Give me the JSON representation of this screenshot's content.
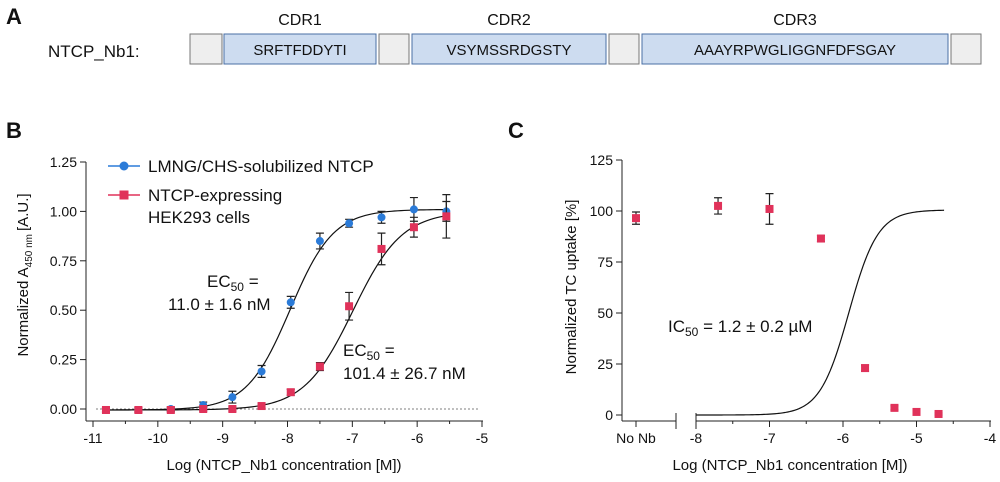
{
  "panel_a": {
    "letter": "A",
    "construct_label": "NTCP_Nb1:",
    "cdrs": [
      {
        "label": "CDR1",
        "sequence": "SRFTFDDYTI"
      },
      {
        "label": "CDR2",
        "sequence": "VSYMSSRDGSTY"
      },
      {
        "label": "CDR3",
        "sequence": "AAAYRPWGLIGGNFDFSGAY"
      }
    ]
  },
  "colors": {
    "blue": "#2b7bd8",
    "red": "#e0325a",
    "cdr_fill": "#cddcf0",
    "cdr_stroke": "#4a6fa5",
    "fw_fill": "#eeeeee",
    "fw_stroke": "#777777"
  },
  "chart_data": [
    {
      "panel": "B",
      "type": "scatter",
      "xlabel": "Log (NTCP_Nb1 concentration [M])",
      "ylabel_main": "Normalized A",
      "ylabel_sub": "450 nm",
      "ylabel_unit": "[A.U.]",
      "xlim": [
        -11,
        -5
      ],
      "ylim": [
        -0.05,
        1.25
      ],
      "xticks": [
        "-11",
        "-10",
        "-9",
        "-8",
        "-7",
        "-6",
        "-5"
      ],
      "yticks": [
        "0.00",
        "0.25",
        "0.50",
        "0.75",
        "1.00",
        "1.25"
      ],
      "xtick_values": [
        -11,
        -10,
        -9,
        -8,
        -7,
        -6,
        -5
      ],
      "ytick_values": [
        0,
        0.25,
        0.5,
        0.75,
        1.0,
        1.25
      ],
      "baseline_dotted": 0,
      "series": [
        {
          "name": "LMNG/CHS-solubilized NTCP",
          "color": "#2b7bd8",
          "marker": "circle",
          "x": [
            -10.8,
            -10.3,
            -9.8,
            -9.3,
            -8.85,
            -8.4,
            -7.95,
            -7.5,
            -7.05,
            -6.55,
            -6.05,
            -5.55
          ],
          "y": [
            -0.005,
            -0.005,
            0.0,
            0.02,
            0.06,
            0.19,
            0.54,
            0.85,
            0.94,
            0.97,
            1.01,
            1.0
          ],
          "err": [
            0.01,
            0.01,
            0.01,
            0.015,
            0.03,
            0.03,
            0.03,
            0.04,
            0.02,
            0.03,
            0.06,
            0.05
          ],
          "fit": {
            "bottom": -0.005,
            "top": 1.01,
            "logEC50": -7.96,
            "hill": 1.3
          }
        },
        {
          "name": "NTCP-expressing HEK293 cells",
          "legend_lines": [
            "NTCP-expressing",
            "HEK293 cells"
          ],
          "color": "#e0325a",
          "marker": "square",
          "x": [
            -10.8,
            -10.3,
            -9.8,
            -9.3,
            -8.85,
            -8.4,
            -7.95,
            -7.5,
            -7.05,
            -6.55,
            -6.05,
            -5.55
          ],
          "y": [
            -0.005,
            -0.005,
            -0.005,
            0.0,
            0.0,
            0.015,
            0.085,
            0.215,
            0.52,
            0.81,
            0.92,
            0.975
          ],
          "err": [
            0.01,
            0.01,
            0.01,
            0.01,
            0.01,
            0.01,
            0.015,
            0.02,
            0.07,
            0.08,
            0.05,
            0.11
          ],
          "fit": {
            "bottom": -0.005,
            "top": 1.0,
            "logEC50": -6.99,
            "hill": 1.15
          }
        }
      ],
      "annotations": [
        {
          "prefix": "EC",
          "sub": "50",
          "suffix": " =",
          "value": "11.0 ± 1.6 nM"
        },
        {
          "prefix": "EC",
          "sub": "50",
          "suffix": " =",
          "value": "101.4 ± 26.7 nM"
        }
      ]
    },
    {
      "panel": "C",
      "type": "scatter",
      "xlabel": "Log (NTCP_Nb1 concentration [M])",
      "ylabel": "Normalized TC uptake [%]",
      "xlim": [
        -8,
        -4
      ],
      "ylim": [
        0,
        125
      ],
      "xticks": [
        "-8",
        "-7",
        "-6",
        "-5",
        "-4"
      ],
      "yticks": [
        "0",
        "25",
        "50",
        "75",
        "100",
        "125"
      ],
      "xtick_values": [
        -8,
        -7,
        -6,
        -5,
        -4
      ],
      "ytick_values": [
        0,
        25,
        50,
        75,
        100,
        125
      ],
      "category_tick": "No Nb",
      "axis_break": true,
      "control": {
        "label": "No Nb",
        "y": 96.5,
        "err": 3
      },
      "series": [
        {
          "name": "NTCP_Nb1",
          "color": "#e0325a",
          "marker": "square",
          "x": [
            -7.7,
            -7.0,
            -6.3,
            -5.7,
            -5.3,
            -5.0,
            -4.7
          ],
          "y": [
            102.5,
            101,
            86.5,
            23,
            3.5,
            1.5,
            0.5
          ],
          "err": [
            4,
            7.5,
            1.5,
            1.5,
            1,
            0.5,
            0.5
          ],
          "fit": {
            "bottom": 0,
            "top": 100.5,
            "logIC50": -5.92,
            "hill": 2.2
          }
        }
      ],
      "annotations": [
        {
          "prefix": "IC",
          "sub": "50",
          "suffix": " = ",
          "value": "1.2 ± 0.2 µM"
        }
      ]
    }
  ]
}
